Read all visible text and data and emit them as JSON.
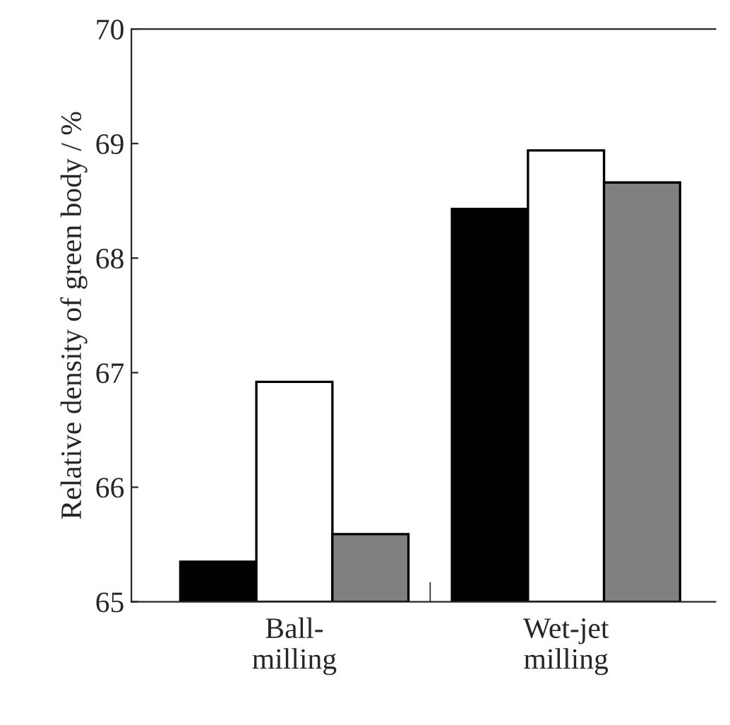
{
  "chart_data": {
    "type": "bar",
    "ylabel": "Relative density of green body / %",
    "categories": [
      "Ball-\nmilling",
      "Wet-jet\nmilling"
    ],
    "series": [
      {
        "color": "#000000",
        "values": [
          65.35,
          68.43
        ]
      },
      {
        "color": "#ffffff",
        "values": [
          66.92,
          68.94
        ]
      },
      {
        "color": "#808080",
        "values": [
          65.59,
          68.66
        ]
      }
    ],
    "ylim": [
      65,
      70
    ],
    "yticks": [
      65,
      66,
      67,
      68,
      69,
      70
    ],
    "grid": false,
    "legend": false
  }
}
